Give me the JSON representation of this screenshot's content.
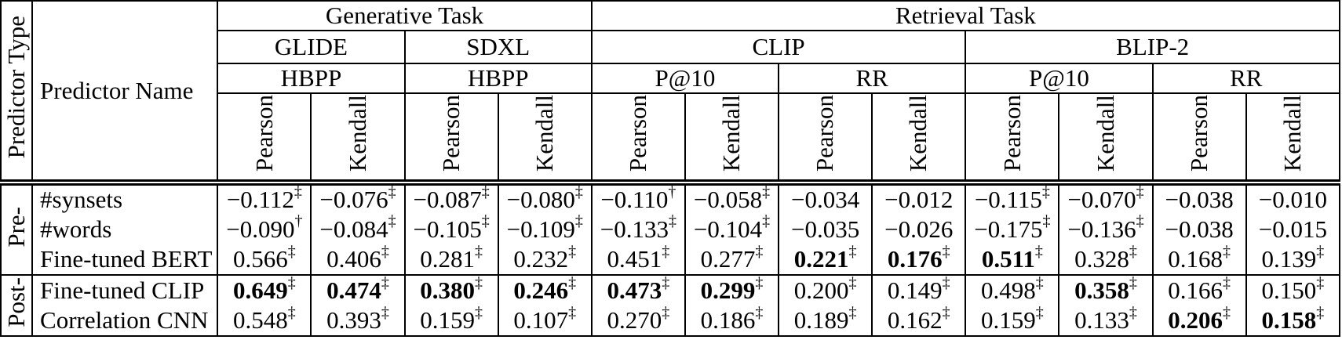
{
  "page": {
    "background": "#ffffff",
    "text_color": "#000000",
    "line_color": "#000000"
  },
  "table": {
    "corner": {
      "type_label": "Predictor Type",
      "name_label": "Predictor Name"
    },
    "header": {
      "tasks": [
        {
          "label": "Generative Task",
          "span": 4
        },
        {
          "label": "Retrieval Task",
          "span": 8
        }
      ],
      "models": [
        {
          "label": "GLIDE",
          "span": 2
        },
        {
          "label": "SDXL",
          "span": 2
        },
        {
          "label": "CLIP",
          "span": 4
        },
        {
          "label": "BLIP-2",
          "span": 4
        }
      ],
      "measures": [
        {
          "label": "HBPP",
          "span": 2
        },
        {
          "label": "HBPP",
          "span": 2
        },
        {
          "label": "P@10",
          "span": 2
        },
        {
          "label": "RR",
          "span": 2
        },
        {
          "label": "P@10",
          "span": 2
        },
        {
          "label": "RR",
          "span": 2
        }
      ],
      "stats": [
        "Pearson",
        "Kendall",
        "Pearson",
        "Kendall",
        "Pearson",
        "Kendall",
        "Pearson",
        "Kendall",
        "Pearson",
        "Kendall",
        "Pearson",
        "Kendall"
      ]
    },
    "groups": [
      {
        "label": "Pre-",
        "rows": [
          {
            "name": "#synsets",
            "cells": [
              {
                "v": "−0.112",
                "sup": "‡",
                "bold": false
              },
              {
                "v": "−0.076",
                "sup": "‡",
                "bold": false
              },
              {
                "v": "−0.087",
                "sup": "‡",
                "bold": false
              },
              {
                "v": "−0.080",
                "sup": "‡",
                "bold": false
              },
              {
                "v": "−0.110",
                "sup": "†",
                "bold": false
              },
              {
                "v": "−0.058",
                "sup": "‡",
                "bold": false
              },
              {
                "v": "−0.034",
                "sup": "",
                "bold": false
              },
              {
                "v": "−0.012",
                "sup": "",
                "bold": false
              },
              {
                "v": "−0.115",
                "sup": "‡",
                "bold": false
              },
              {
                "v": "−0.070",
                "sup": "‡",
                "bold": false
              },
              {
                "v": "−0.038",
                "sup": "",
                "bold": false
              },
              {
                "v": "−0.010",
                "sup": "",
                "bold": false
              }
            ]
          },
          {
            "name": "#words",
            "cells": [
              {
                "v": "−0.090",
                "sup": "†",
                "bold": false
              },
              {
                "v": "−0.084",
                "sup": "‡",
                "bold": false
              },
              {
                "v": "−0.105",
                "sup": "‡",
                "bold": false
              },
              {
                "v": "−0.109",
                "sup": "‡",
                "bold": false
              },
              {
                "v": "−0.133",
                "sup": "‡",
                "bold": false
              },
              {
                "v": "−0.104",
                "sup": "‡",
                "bold": false
              },
              {
                "v": "−0.035",
                "sup": "",
                "bold": false
              },
              {
                "v": "−0.026",
                "sup": "",
                "bold": false
              },
              {
                "v": "−0.175",
                "sup": "‡",
                "bold": false
              },
              {
                "v": "−0.136",
                "sup": "‡",
                "bold": false
              },
              {
                "v": "−0.038",
                "sup": "",
                "bold": false
              },
              {
                "v": "−0.015",
                "sup": "",
                "bold": false
              }
            ]
          },
          {
            "name": "Fine-tuned BERT",
            "cells": [
              {
                "v": "0.566",
                "sup": "‡",
                "bold": false
              },
              {
                "v": "0.406",
                "sup": "‡",
                "bold": false
              },
              {
                "v": "0.281",
                "sup": "‡",
                "bold": false
              },
              {
                "v": "0.232",
                "sup": "‡",
                "bold": false
              },
              {
                "v": "0.451",
                "sup": "‡",
                "bold": false
              },
              {
                "v": "0.277",
                "sup": "‡",
                "bold": false
              },
              {
                "v": "0.221",
                "sup": "‡",
                "bold": true
              },
              {
                "v": "0.176",
                "sup": "‡",
                "bold": true
              },
              {
                "v": "0.511",
                "sup": "‡",
                "bold": true
              },
              {
                "v": "0.328",
                "sup": "‡",
                "bold": false
              },
              {
                "v": "0.168",
                "sup": "‡",
                "bold": false
              },
              {
                "v": "0.139",
                "sup": "‡",
                "bold": false
              }
            ]
          }
        ]
      },
      {
        "label": "Post-",
        "rows": [
          {
            "name": "Fine-tuned CLIP",
            "cells": [
              {
                "v": "0.649",
                "sup": "‡",
                "bold": true
              },
              {
                "v": "0.474",
                "sup": "‡",
                "bold": true
              },
              {
                "v": "0.380",
                "sup": "‡",
                "bold": true
              },
              {
                "v": "0.246",
                "sup": "‡",
                "bold": true
              },
              {
                "v": "0.473",
                "sup": "‡",
                "bold": true
              },
              {
                "v": "0.299",
                "sup": "‡",
                "bold": true
              },
              {
                "v": "0.200",
                "sup": "‡",
                "bold": false
              },
              {
                "v": "0.149",
                "sup": "‡",
                "bold": false
              },
              {
                "v": "0.498",
                "sup": "‡",
                "bold": false
              },
              {
                "v": "0.358",
                "sup": "‡",
                "bold": true
              },
              {
                "v": "0.166",
                "sup": "‡",
                "bold": false
              },
              {
                "v": "0.150",
                "sup": "‡",
                "bold": false
              }
            ]
          },
          {
            "name": "Correlation CNN",
            "cells": [
              {
                "v": "0.548",
                "sup": "‡",
                "bold": false
              },
              {
                "v": "0.393",
                "sup": "‡",
                "bold": false
              },
              {
                "v": "0.159",
                "sup": "‡",
                "bold": false
              },
              {
                "v": "0.107",
                "sup": "‡",
                "bold": false
              },
              {
                "v": "0.270",
                "sup": "‡",
                "bold": false
              },
              {
                "v": "0.186",
                "sup": "‡",
                "bold": false
              },
              {
                "v": "0.189",
                "sup": "‡",
                "bold": false
              },
              {
                "v": "0.162",
                "sup": "‡",
                "bold": false
              },
              {
                "v": "0.159",
                "sup": "‡",
                "bold": false
              },
              {
                "v": "0.133",
                "sup": "‡",
                "bold": false
              },
              {
                "v": "0.206",
                "sup": "‡",
                "bold": true
              },
              {
                "v": "0.158",
                "sup": "‡",
                "bold": true
              }
            ]
          }
        ]
      }
    ]
  }
}
